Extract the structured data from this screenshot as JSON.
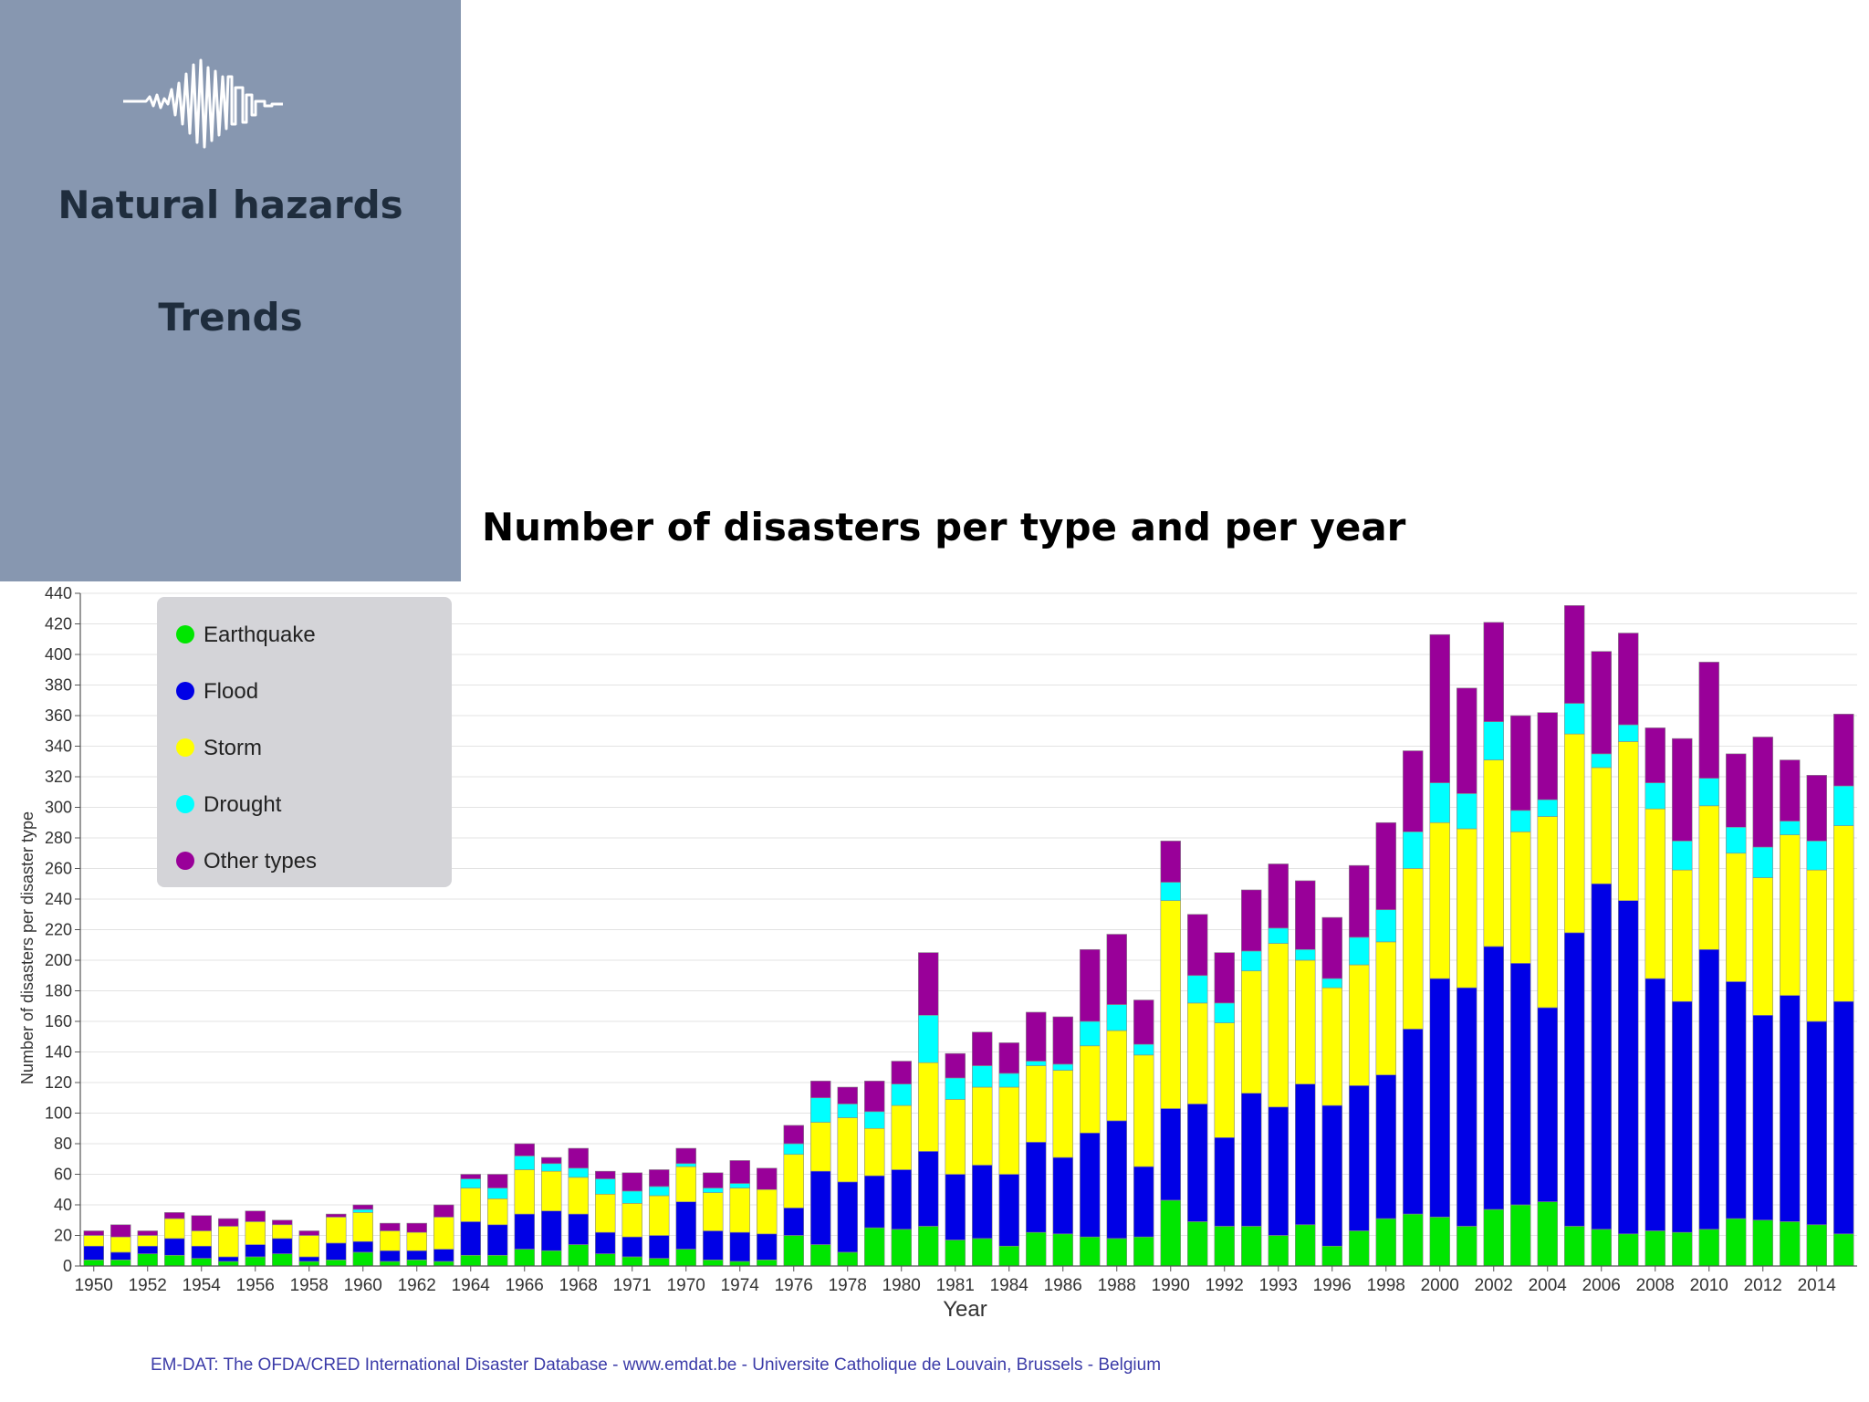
{
  "sidebar": {
    "logo_icon": "seismograph-skyline-icon",
    "title": "Natural hazards",
    "subtitle": "Trends",
    "background": "#8797b0"
  },
  "chart_title": "Number of disasters per type and per year",
  "source": "EM-DAT: The OFDA/CRED International Disaster Database - www.emdat.be - Universite Catholique de Louvain, Brussels - Belgium",
  "chart_data": {
    "type": "bar",
    "stacked": true,
    "xlabel": "Year",
    "ylabel": "Number of disasters per  disaster type",
    "ylim": [
      0,
      440
    ],
    "y_tick_step": 20,
    "grid": true,
    "legend_position": "top-left",
    "categories": [
      "1950",
      "1951",
      "1952",
      "1953",
      "1954",
      "1955",
      "1956",
      "1957",
      "1958",
      "1959",
      "1960",
      "1961",
      "1962",
      "1963",
      "1964",
      "1965",
      "1966",
      "1967",
      "1968",
      "1969",
      "1971",
      "1972",
      "1970",
      "1973",
      "1974",
      "1975",
      "1976",
      "1977",
      "1978",
      "1979",
      "1980",
      "1980b",
      "1981",
      "1982",
      "1984",
      "1985",
      "1986",
      "1987",
      "1988",
      "1989",
      "1990",
      "1991",
      "1992",
      "1992b",
      "1993",
      "1994",
      "1996",
      "1997",
      "1998",
      "1999",
      "2000",
      "2001",
      "2002",
      "2003",
      "2004",
      "2005",
      "2006",
      "2007",
      "2008",
      "2009",
      "2010",
      "2011",
      "2012",
      "2013",
      "2014",
      "2015"
    ],
    "x_tick_labels": [
      "1950",
      "1952",
      "1954",
      "1956",
      "1958",
      "1960",
      "1962",
      "1964",
      "1966",
      "1968",
      "1971",
      "1970",
      "1974",
      "1976",
      "1978",
      "1980",
      "1981",
      "1984",
      "1986",
      "1988",
      "1990",
      "1992",
      "1993",
      "1996",
      "1998",
      "2000",
      "2002",
      "2004",
      "2006",
      "2008",
      "2010",
      "2012",
      "2014"
    ],
    "series": [
      {
        "name": "Earthquake",
        "color": "#00e600",
        "values": [
          4,
          4,
          8,
          7,
          5,
          3,
          6,
          8,
          3,
          4,
          9,
          3,
          4,
          3,
          7,
          7,
          11,
          10,
          14,
          8,
          6,
          5,
          11,
          4,
          3,
          4,
          20,
          14,
          9,
          25,
          24,
          26,
          17,
          18,
          13,
          22,
          21,
          19,
          18,
          19,
          43,
          29,
          26,
          26,
          20,
          27,
          13,
          23,
          31,
          34,
          32,
          26,
          37,
          40,
          42,
          26,
          24,
          21,
          23,
          22,
          24,
          31,
          30,
          29,
          27,
          21
        ]
      },
      {
        "name": "Flood",
        "color": "#0000e6",
        "values": [
          9,
          5,
          5,
          11,
          8,
          3,
          8,
          10,
          3,
          11,
          7,
          7,
          6,
          8,
          22,
          20,
          23,
          26,
          20,
          14,
          13,
          15,
          31,
          19,
          19,
          17,
          18,
          48,
          46,
          34,
          39,
          49,
          43,
          48,
          47,
          59,
          50,
          68,
          77,
          46,
          60,
          77,
          58,
          87,
          84,
          92,
          92,
          95,
          94,
          121,
          156,
          156,
          172,
          158,
          127,
          192,
          226,
          218,
          165,
          151,
          183,
          155,
          134,
          148,
          133,
          152
        ]
      },
      {
        "name": "Storm",
        "color": "#ffff00",
        "values": [
          7,
          10,
          7,
          13,
          10,
          20,
          15,
          9,
          14,
          17,
          19,
          13,
          12,
          21,
          22,
          17,
          29,
          26,
          24,
          25,
          22,
          26,
          23,
          25,
          29,
          29,
          35,
          32,
          42,
          31,
          42,
          58,
          49,
          51,
          57,
          50,
          57,
          57,
          59,
          73,
          136,
          66,
          75,
          80,
          107,
          81,
          77,
          79,
          87,
          105,
          102,
          104,
          122,
          86,
          125,
          130,
          76,
          104,
          111,
          86,
          94,
          84,
          90,
          105,
          99,
          115
        ]
      },
      {
        "name": "Drought",
        "color": "#00ffff",
        "values": [
          0,
          0,
          0,
          0,
          0,
          0,
          0,
          0,
          0,
          0,
          2,
          0,
          0,
          0,
          6,
          7,
          9,
          5,
          6,
          10,
          8,
          6,
          2,
          3,
          3,
          0,
          7,
          16,
          9,
          11,
          14,
          31,
          14,
          14,
          9,
          3,
          4,
          16,
          17,
          7,
          12,
          18,
          13,
          13,
          10,
          7,
          6,
          18,
          21,
          24,
          26,
          23,
          25,
          14,
          11,
          20,
          9,
          11,
          17,
          19,
          18,
          17,
          20,
          9,
          19,
          26
        ]
      },
      {
        "name": "Other types",
        "color": "#990099",
        "values": [
          3,
          8,
          3,
          4,
          10,
          5,
          7,
          3,
          3,
          2,
          3,
          5,
          6,
          8,
          3,
          9,
          8,
          4,
          13,
          5,
          12,
          11,
          10,
          10,
          15,
          14,
          12,
          11,
          11,
          20,
          15,
          41,
          16,
          22,
          20,
          32,
          31,
          47,
          46,
          29,
          27,
          40,
          33,
          40,
          42,
          45,
          40,
          47,
          57,
          53,
          97,
          69,
          65,
          62,
          57,
          64,
          67,
          60,
          36,
          67,
          76,
          48,
          72,
          40,
          43,
          47
        ]
      }
    ]
  }
}
